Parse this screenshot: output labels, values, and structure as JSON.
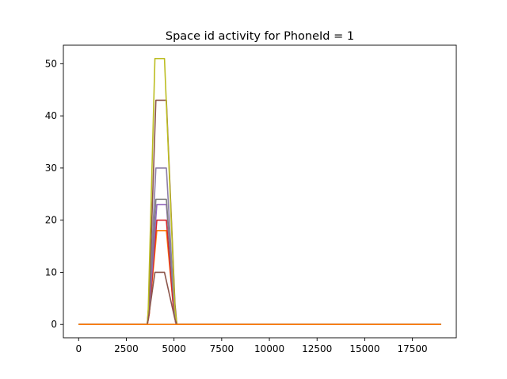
{
  "chart_data": {
    "type": "line",
    "title": "Space id activity for PhoneId = 1",
    "xlabel": "",
    "ylabel": "",
    "xlim": [
      -800,
      19800
    ],
    "ylim": [
      -2.55,
      53.55
    ],
    "xticks": [
      0,
      2500,
      5000,
      7500,
      10000,
      12500,
      15000,
      17500
    ],
    "yticks": [
      0,
      10,
      20,
      30,
      40,
      50
    ],
    "grid": false,
    "legend": "none",
    "series": [
      {
        "color": "#1f77b4",
        "x": [
          0,
          19000
        ],
        "y": [
          0,
          0
        ]
      },
      {
        "color": "#ff7f0e",
        "x": [
          0,
          3600,
          3700,
          4100,
          4600,
          4950,
          5100,
          19000
        ],
        "y": [
          0,
          0,
          2,
          18,
          18,
          4,
          0,
          0
        ]
      },
      {
        "color": "#d62728",
        "x": [
          0,
          3600,
          3700,
          4100,
          4600,
          4950,
          5100,
          19000
        ],
        "y": [
          0,
          0,
          2,
          20,
          20,
          4,
          0,
          0
        ]
      },
      {
        "color": "#9467bd",
        "x": [
          0,
          3600,
          3700,
          4100,
          4600,
          5000,
          5100,
          19000
        ],
        "y": [
          0,
          0,
          3,
          23,
          23,
          4,
          0,
          0
        ]
      },
      {
        "color": "#7f7f7f",
        "x": [
          0,
          3600,
          3700,
          4050,
          4600,
          5000,
          5100,
          19000
        ],
        "y": [
          0,
          0,
          4,
          24,
          24,
          4,
          0,
          0
        ]
      },
      {
        "color": "#8c7ea8",
        "x": [
          0,
          3600,
          3700,
          4050,
          4600,
          5000,
          5100,
          19000
        ],
        "y": [
          0,
          0,
          4,
          30,
          30,
          4,
          0,
          0
        ]
      },
      {
        "color": "#8c564b",
        "x": [
          0,
          3600,
          3700,
          4050,
          4600,
          5050,
          5150,
          19000
        ],
        "y": [
          0,
          0,
          5,
          43,
          43,
          4,
          0,
          0
        ]
      },
      {
        "color": "#bcbd22",
        "x": [
          0,
          3600,
          3650,
          4000,
          4500,
          5050,
          5150,
          19000
        ],
        "y": [
          0,
          0,
          3,
          51,
          51,
          3,
          0,
          0
        ]
      },
      {
        "color": "#8c564b",
        "x": [
          0,
          3600,
          3650,
          4000,
          4500,
          5050,
          5150,
          19000
        ],
        "y": [
          0,
          0,
          1,
          10,
          10,
          1,
          0,
          0
        ]
      },
      {
        "color": "#ff7f0e",
        "x": [
          0,
          19000
        ],
        "y": [
          0,
          0
        ]
      }
    ]
  }
}
